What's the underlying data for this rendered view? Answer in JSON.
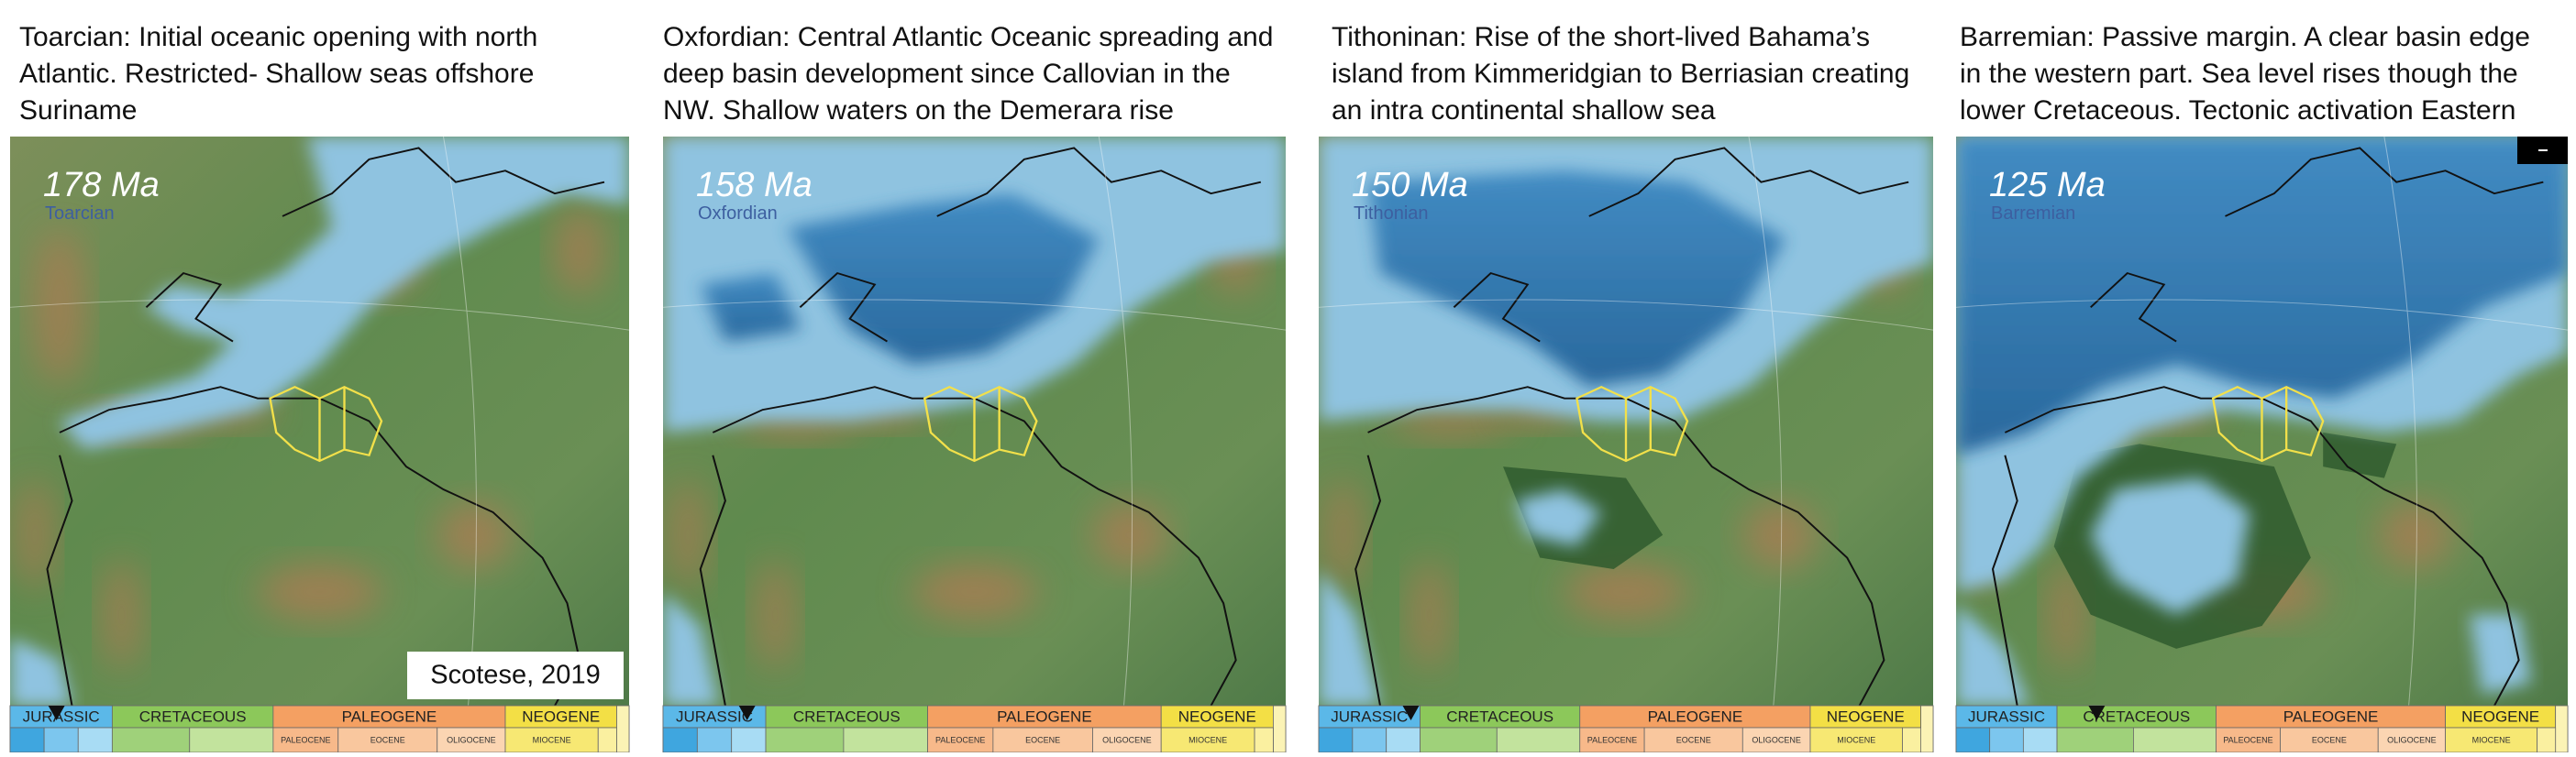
{
  "panels": [
    {
      "caption_lines": [
        "Toarcian: Initial oceanic opening with north",
        "Atlantic. Restricted- Shallow seas offshore",
        "Suriname"
      ],
      "age": "178 Ma",
      "stage": "Toarcian"
    },
    {
      "caption_lines": [
        "Oxfordian: Central Atlantic Oceanic spreading and",
        "deep basin development since Callovian in the",
        "NW. Shallow waters on the Demerara rise"
      ],
      "age": "158 Ma",
      "stage": "Oxfordian"
    },
    {
      "caption_lines": [
        "Tithoninan: Rise of the short-lived Bahama’s",
        "island from Kimmeridgian to Berriasian creating",
        "an intra continental shallow sea"
      ],
      "age": "150 Ma",
      "stage": "Tithonian"
    },
    {
      "caption_lines": [
        "Barremian: Passive margin. A clear basin edge",
        "in the western part. Sea level rises though the",
        "lower Cretaceous. Tectonic activation Eastern"
      ],
      "age": "125 Ma",
      "stage": "Barremian"
    }
  ],
  "credit": "Scotese, 2019",
  "timescale": {
    "periods": [
      "JURASSIC",
      "CRETACEOUS",
      "PALEOGENE",
      "NEOGENE"
    ],
    "epochs": [
      "PALEOCENE",
      "EOCENE",
      "OLIGOCENE",
      "MIOCENE"
    ]
  }
}
